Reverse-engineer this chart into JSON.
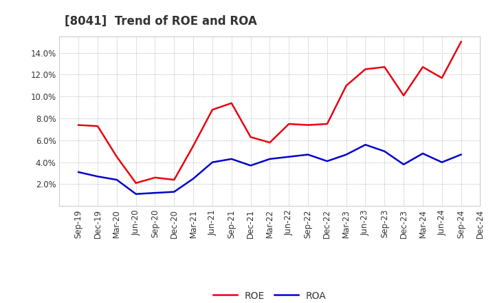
{
  "title": "[8041]  Trend of ROE and ROA",
  "x_labels": [
    "Sep-19",
    "Dec-19",
    "Mar-20",
    "Jun-20",
    "Sep-20",
    "Dec-20",
    "Mar-21",
    "Jun-21",
    "Sep-21",
    "Dec-21",
    "Mar-22",
    "Jun-22",
    "Sep-22",
    "Dec-22",
    "Mar-23",
    "Jun-23",
    "Sep-23",
    "Dec-23",
    "Mar-24",
    "Jun-24",
    "Sep-24",
    "Dec-24"
  ],
  "roe": [
    7.4,
    7.3,
    4.5,
    2.1,
    2.6,
    2.4,
    5.5,
    8.8,
    9.4,
    6.3,
    5.8,
    7.5,
    7.4,
    7.5,
    11.0,
    12.5,
    12.7,
    10.1,
    12.7,
    11.7,
    15.0,
    null
  ],
  "roa": [
    3.1,
    2.7,
    2.4,
    1.1,
    1.2,
    1.3,
    2.5,
    4.0,
    4.3,
    3.7,
    4.3,
    4.5,
    4.7,
    4.1,
    4.7,
    5.6,
    5.0,
    3.8,
    4.8,
    4.0,
    4.7,
    null
  ],
  "roe_color": "#e8000d",
  "roa_color": "#0000cc",
  "background_color": "#ffffff",
  "plot_background": "#ffffff",
  "grid_color": "#aaaaaa",
  "ylim": [
    0,
    15.5
  ],
  "yticks": [
    2.0,
    4.0,
    6.0,
    8.0,
    10.0,
    12.0,
    14.0
  ],
  "legend_roe": "ROE",
  "legend_roa": "ROA",
  "title_fontsize": 12,
  "title_color": "#333333",
  "axis_fontsize": 8.5,
  "legend_fontsize": 10,
  "line_width": 1.8
}
